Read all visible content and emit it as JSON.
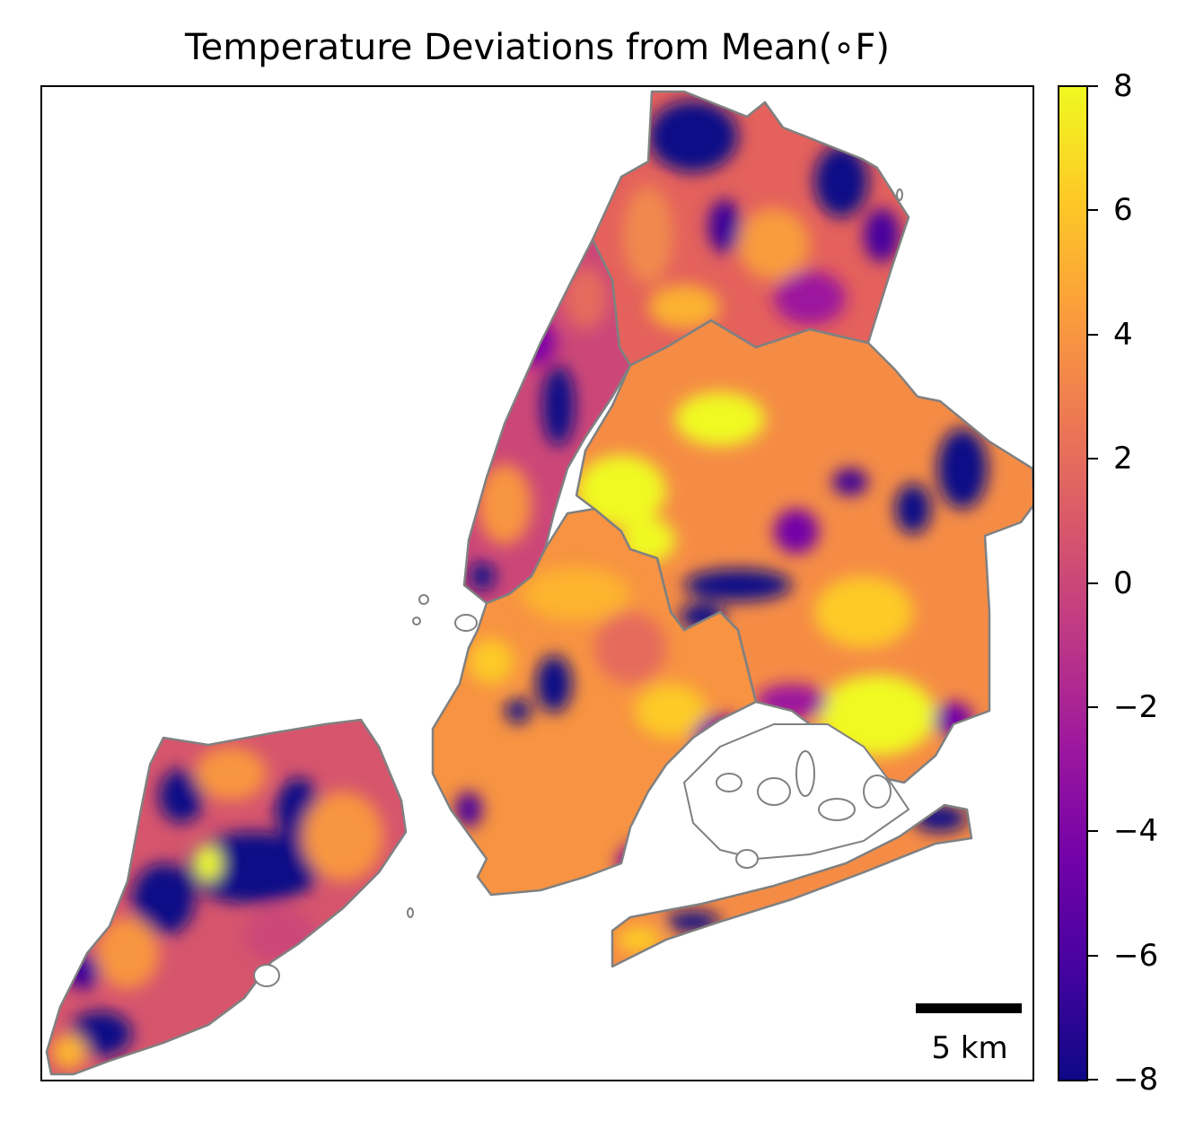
{
  "title": "Temperature Deviations from Mean(∘F)",
  "scalebar": {
    "label": "5 km"
  },
  "colorbar": {
    "min": -8,
    "max": 8,
    "colormap": "plasma",
    "colors": [
      "#0d0887",
      "#46039f",
      "#7201a8",
      "#9c179e",
      "#bd3786",
      "#d8576b",
      "#ed7953",
      "#fb9f3a",
      "#fdca26",
      "#f0f921"
    ],
    "ticks": [
      {
        "value": 8,
        "label": "8"
      },
      {
        "value": 6,
        "label": "6"
      },
      {
        "value": 4,
        "label": "4"
      },
      {
        "value": 2,
        "label": "2"
      },
      {
        "value": 0,
        "label": "0"
      },
      {
        "value": -2,
        "label": "−2"
      },
      {
        "value": -4,
        "label": "−4"
      },
      {
        "value": -6,
        "label": "−6"
      },
      {
        "value": -8,
        "label": "−8"
      }
    ]
  },
  "colors": {
    "outline": "#808080",
    "frame": "#000000",
    "background": "#ffffff"
  }
}
